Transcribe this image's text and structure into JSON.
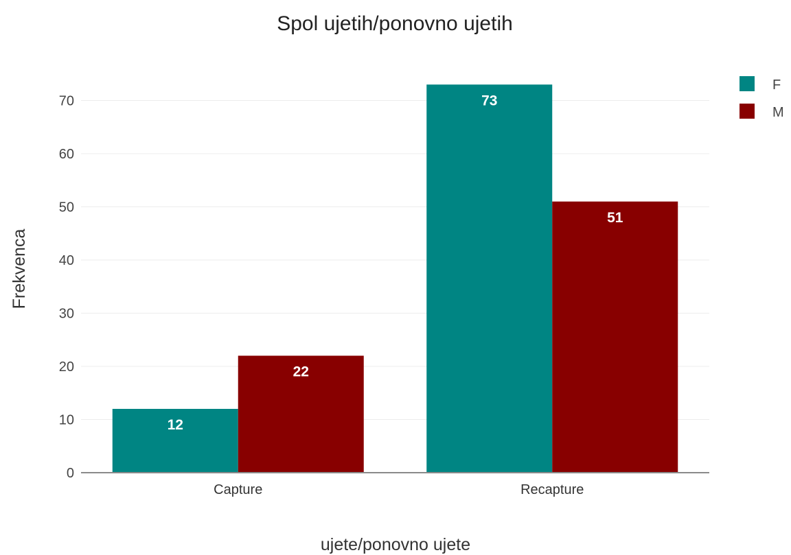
{
  "chart_data": {
    "type": "bar",
    "title": "Spol ujetih/ponovno ujetih",
    "xlabel": "ujete/ponovno ujete",
    "ylabel": "Frekvenca",
    "categories": [
      "Capture",
      "Recapture"
    ],
    "series": [
      {
        "name": "F",
        "color": "#008583",
        "values": [
          12,
          73
        ]
      },
      {
        "name": "M",
        "color": "#880000",
        "values": [
          22,
          51
        ]
      }
    ],
    "ylim": [
      0,
      76
    ],
    "yticks": [
      0,
      10,
      20,
      30,
      40,
      50,
      60,
      70
    ],
    "grid": true,
    "legend_position": "top-right",
    "data_labels": true
  }
}
